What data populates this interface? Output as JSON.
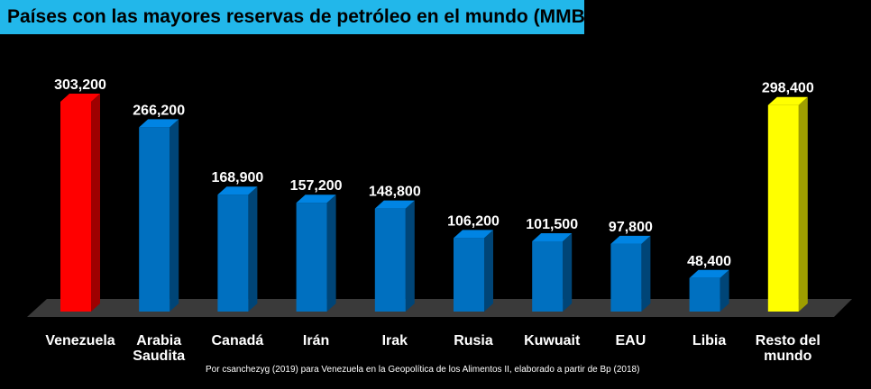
{
  "title": "Países con las mayores reservas de petróleo en el mundo (MMB)",
  "source": "Por csanchezyg  (2019) para Venezuela  en la Geopolítica  de los Alimentos  II, elaborado a partir de Bp (2018)",
  "colors": {
    "background": "#000000",
    "banner": "#22b7ea",
    "highlight_red": "#ff0000",
    "bar_blue": "#0070c0",
    "highlight_yellow": "#ffff00",
    "floor": "#3a3a3a"
  },
  "chart_data": {
    "type": "bar",
    "title": "Países con las mayores reservas de petróleo en el mundo (MMB)",
    "xlabel": "",
    "ylabel": "",
    "ylim": [
      0,
      303200
    ],
    "grid": false,
    "categories": [
      "Venezuela",
      "Arabia Saudita",
      "Canadá",
      "Irán",
      "Irak",
      "Rusia",
      "Kuwuait",
      "EAU",
      "Libia",
      "Resto del mundo"
    ],
    "category_lines": [
      [
        "Venezuela"
      ],
      [
        "Arabia",
        "Saudita"
      ],
      [
        "Canadá"
      ],
      [
        "Irán"
      ],
      [
        "Irak"
      ],
      [
        "Rusia"
      ],
      [
        "Kuwuait"
      ],
      [
        "EAU"
      ],
      [
        "Libia"
      ],
      [
        "Resto del",
        "mundo"
      ]
    ],
    "values": [
      303200,
      266200,
      168900,
      157200,
      148800,
      106200,
      101500,
      97800,
      48400,
      298400
    ],
    "value_labels": [
      "303,200",
      "266,200",
      "168,900",
      "157,200",
      "148,800",
      "106,200",
      "101,500",
      "97,800",
      "48,400",
      "298,400"
    ],
    "bar_colors": [
      "#ff0000",
      "#0070c0",
      "#0070c0",
      "#0070c0",
      "#0070c0",
      "#0070c0",
      "#0070c0",
      "#0070c0",
      "#0070c0",
      "#ffff00"
    ]
  }
}
